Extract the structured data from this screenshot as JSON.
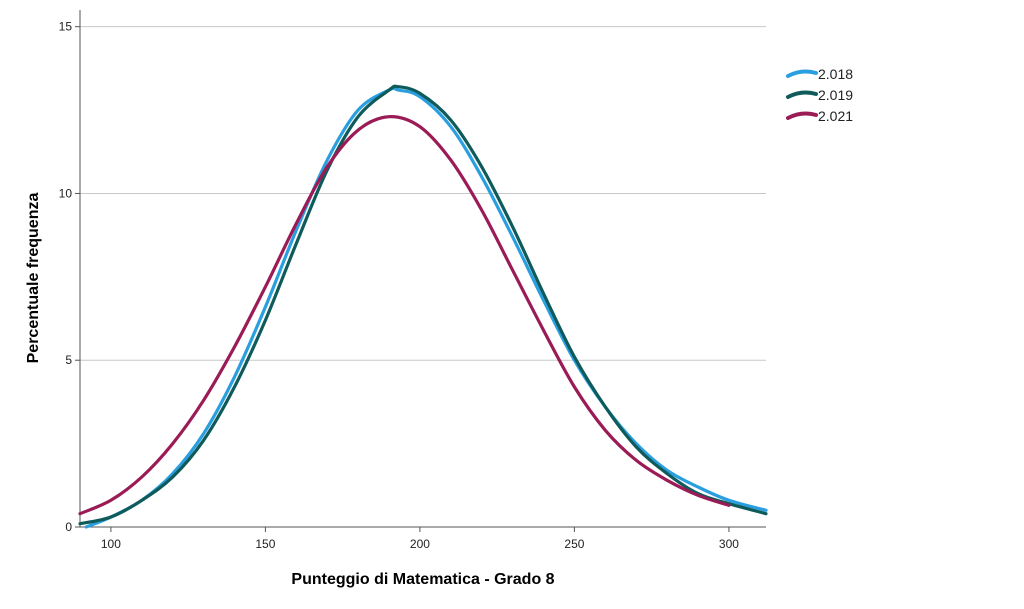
{
  "chart_data": {
    "type": "line",
    "title": "",
    "xlabel": "Punteggio di Matematica - Grado 8",
    "ylabel": "Percentuale frequenza",
    "xlim": [
      90,
      312
    ],
    "ylim": [
      0,
      15.5
    ],
    "xticks": [
      "100",
      "150",
      "200",
      "250",
      "300"
    ],
    "yticks": [
      "0",
      "5",
      "10",
      "15"
    ],
    "grid": "horizontal",
    "legend_position": "top-right",
    "series": [
      {
        "name": "2.018",
        "color": "#2a9fe0",
        "x": [
          92,
          100,
          110,
          120,
          130,
          140,
          150,
          160,
          170,
          180,
          190,
          193,
          200,
          210,
          220,
          230,
          240,
          250,
          260,
          270,
          280,
          290,
          300,
          312
        ],
        "y": [
          0.0,
          0.3,
          0.8,
          1.6,
          2.8,
          4.5,
          6.6,
          8.9,
          11.0,
          12.5,
          13.1,
          13.1,
          12.9,
          12.0,
          10.5,
          8.7,
          6.8,
          5.0,
          3.6,
          2.5,
          1.7,
          1.2,
          0.8,
          0.5
        ]
      },
      {
        "name": "2.019",
        "color": "#0f5a5a",
        "x": [
          90,
          100,
          110,
          120,
          130,
          140,
          150,
          160,
          170,
          180,
          190,
          193,
          200,
          210,
          220,
          230,
          240,
          250,
          260,
          270,
          280,
          290,
          300,
          312
        ],
        "y": [
          0.1,
          0.3,
          0.8,
          1.5,
          2.6,
          4.2,
          6.2,
          8.5,
          10.7,
          12.3,
          13.1,
          13.2,
          13.0,
          12.2,
          10.8,
          9.0,
          7.0,
          5.1,
          3.6,
          2.4,
          1.6,
          1.0,
          0.7,
          0.4
        ]
      },
      {
        "name": "2.021",
        "color": "#9a1b55",
        "x": [
          90,
          100,
          110,
          120,
          130,
          140,
          150,
          160,
          170,
          180,
          190,
          200,
          210,
          220,
          230,
          240,
          250,
          260,
          270,
          280,
          290,
          300
        ],
        "y": [
          0.4,
          0.8,
          1.5,
          2.5,
          3.8,
          5.4,
          7.2,
          9.1,
          10.8,
          11.9,
          12.3,
          12.0,
          11.0,
          9.5,
          7.7,
          5.9,
          4.2,
          2.9,
          2.0,
          1.4,
          0.95,
          0.65
        ]
      }
    ]
  }
}
